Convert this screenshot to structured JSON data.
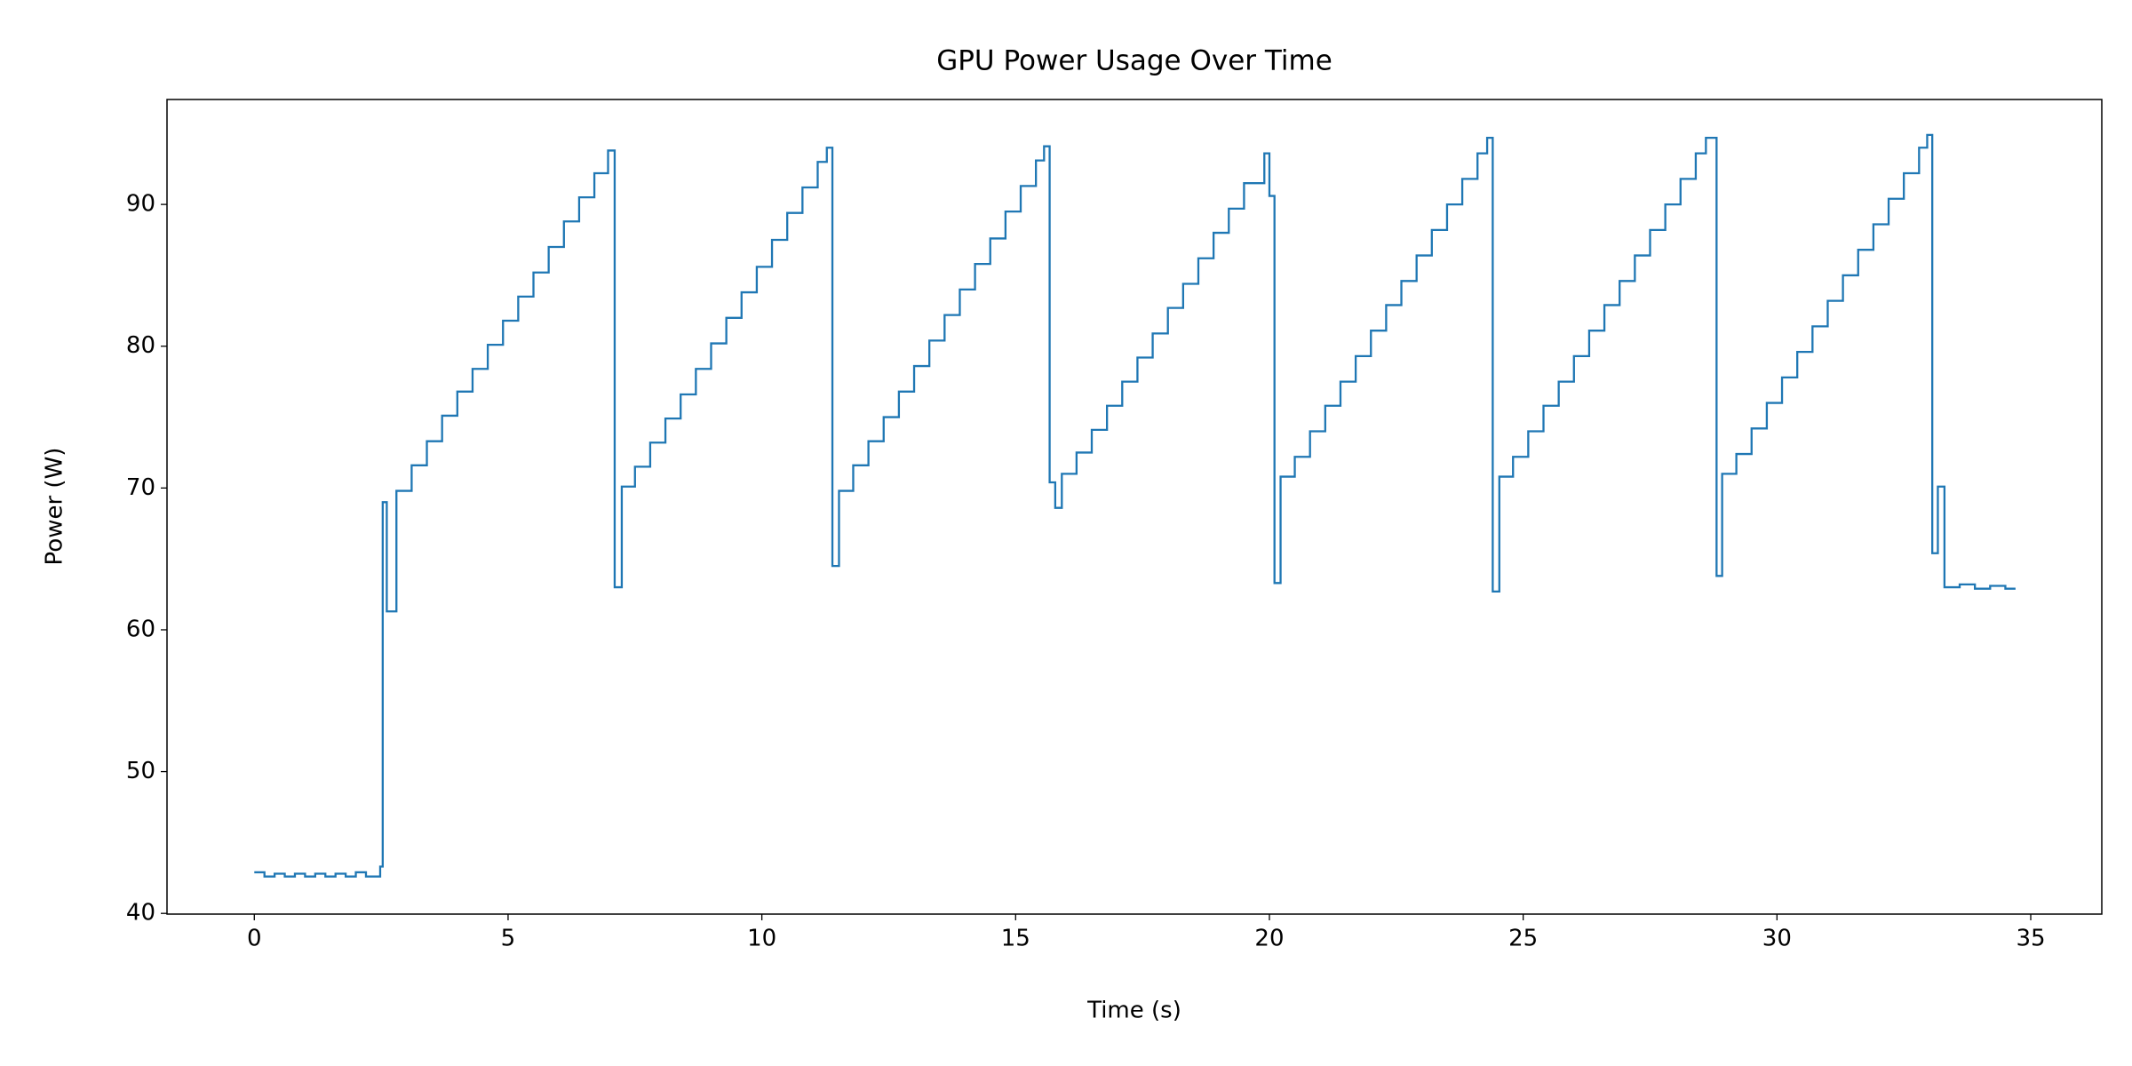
{
  "chart_data": {
    "type": "step",
    "title": "GPU Power Usage Over Time",
    "x_label": "Time (s)",
    "y_label": "Power (W)",
    "series": [
      {
        "name": "GPU Power",
        "color": "#1f77b4",
        "x": [
          0,
          0.2,
          0.4,
          0.6,
          0.8,
          1.0,
          1.2,
          1.4,
          1.6,
          1.8,
          2.0,
          2.2,
          2.48,
          2.53,
          2.61,
          2.8,
          3.1,
          3.4,
          3.7,
          4.0,
          4.3,
          4.6,
          4.9,
          5.2,
          5.5,
          5.8,
          6.1,
          6.4,
          6.7,
          6.97,
          7.1,
          7.24,
          7.5,
          7.8,
          8.1,
          8.4,
          8.7,
          9.0,
          9.3,
          9.6,
          9.9,
          10.2,
          10.5,
          10.8,
          11.1,
          11.28,
          11.39,
          11.52,
          11.8,
          12.1,
          12.4,
          12.7,
          13.0,
          13.3,
          13.6,
          13.9,
          14.2,
          14.5,
          14.8,
          15.1,
          15.4,
          15.56,
          15.67,
          15.78,
          15.91,
          16.2,
          16.5,
          16.8,
          17.1,
          17.4,
          17.7,
          18.0,
          18.3,
          18.6,
          18.9,
          19.2,
          19.5,
          19.9,
          20.0,
          20.1,
          20.22,
          20.5,
          20.8,
          21.1,
          21.4,
          21.7,
          22.0,
          22.3,
          22.6,
          22.9,
          23.2,
          23.5,
          23.8,
          24.1,
          24.29,
          24.4,
          24.53,
          24.8,
          25.1,
          25.4,
          25.7,
          26.0,
          26.3,
          26.6,
          26.9,
          27.2,
          27.5,
          27.8,
          28.1,
          28.4,
          28.6,
          28.81,
          28.92,
          29.2,
          29.5,
          29.8,
          30.1,
          30.4,
          30.7,
          31.0,
          31.3,
          31.6,
          31.9,
          32.2,
          32.5,
          32.8,
          32.96,
          33.06,
          33.17,
          33.3,
          33.6,
          33.9,
          34.2,
          34.5,
          34.7
        ],
        "values": [
          42.9,
          42.6,
          42.8,
          42.6,
          42.8,
          42.6,
          42.8,
          42.6,
          42.8,
          42.6,
          42.9,
          42.6,
          43.3,
          69.0,
          61.3,
          69.8,
          71.6,
          73.3,
          75.1,
          76.8,
          78.4,
          80.1,
          81.8,
          83.5,
          85.2,
          87.0,
          88.8,
          90.5,
          92.2,
          93.8,
          63.0,
          70.1,
          71.5,
          73.2,
          74.9,
          76.6,
          78.4,
          80.2,
          82.0,
          83.8,
          85.6,
          87.5,
          89.4,
          91.2,
          93.0,
          94.0,
          64.5,
          69.8,
          71.6,
          73.3,
          75.0,
          76.8,
          78.6,
          80.4,
          82.2,
          84.0,
          85.8,
          87.6,
          89.5,
          91.3,
          93.1,
          94.1,
          70.4,
          68.6,
          71.0,
          72.5,
          74.1,
          75.8,
          77.5,
          79.2,
          80.9,
          82.7,
          84.4,
          86.2,
          88.0,
          89.7,
          91.5,
          93.6,
          90.6,
          63.3,
          70.8,
          72.2,
          74.0,
          75.8,
          77.5,
          79.3,
          81.1,
          82.9,
          84.6,
          86.4,
          88.2,
          90.0,
          91.8,
          93.6,
          94.7,
          62.7,
          70.8,
          72.2,
          74.0,
          75.8,
          77.5,
          79.3,
          81.1,
          82.9,
          84.6,
          86.4,
          88.2,
          90.0,
          91.8,
          93.6,
          94.7,
          63.8,
          71.0,
          72.4,
          74.2,
          76.0,
          77.8,
          79.6,
          81.4,
          83.2,
          85.0,
          86.8,
          88.6,
          90.4,
          92.2,
          94.0,
          94.9,
          65.4,
          70.1,
          63.0,
          63.2,
          62.9,
          63.1,
          62.9,
          62.9
        ]
      }
    ],
    "xlim": [
      -1.72,
      36.4
    ],
    "xticks": [
      0,
      5,
      10,
      15,
      20,
      25,
      30,
      35
    ],
    "ylim": [
      39.95,
      97.4
    ],
    "yticks": [
      40,
      50,
      60,
      70,
      80,
      90
    ],
    "grid": false
  }
}
